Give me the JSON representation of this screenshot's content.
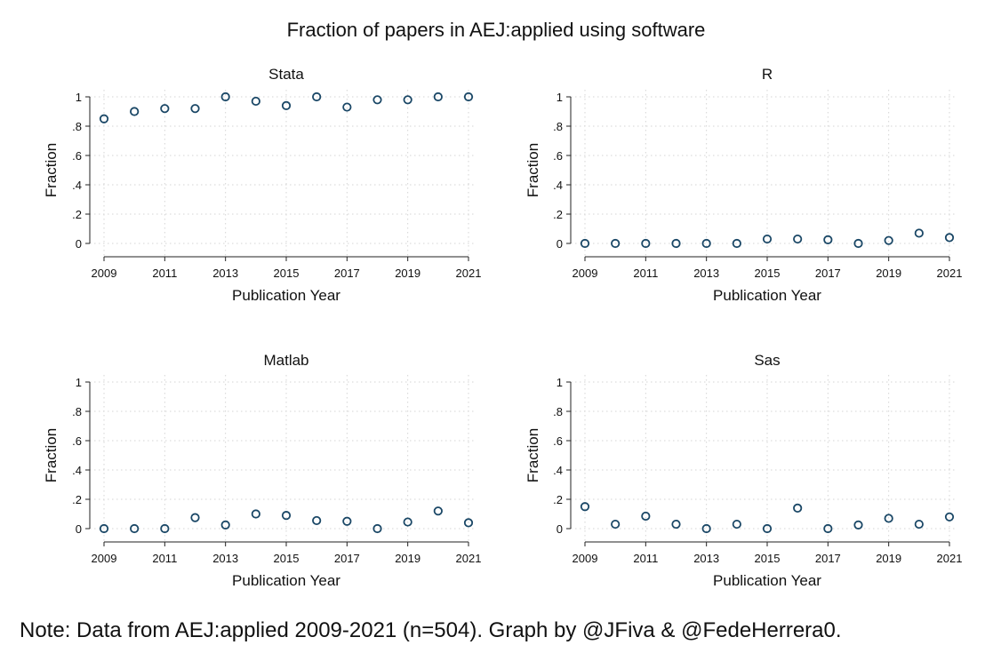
{
  "figure": {
    "title": "Fraction of papers in AEJ:applied using software",
    "note": "Note: Data from AEJ:applied 2009-2021 (n=504). Graph by @JFiva & @FedeHerrera0."
  },
  "chart_data": [
    {
      "type": "scatter",
      "title": "Stata",
      "xlabel": "Publication Year",
      "ylabel": "Fraction",
      "x": [
        2009,
        2010,
        2011,
        2012,
        2013,
        2014,
        2015,
        2016,
        2017,
        2018,
        2019,
        2020,
        2021
      ],
      "y": [
        0.85,
        0.9,
        0.92,
        0.92,
        1.0,
        0.97,
        0.94,
        1.0,
        0.93,
        0.98,
        0.98,
        1.0,
        1.0
      ],
      "xlim": [
        2009,
        2021
      ],
      "ylim": [
        0,
        1
      ],
      "xticks": [
        2009,
        2011,
        2013,
        2015,
        2017,
        2019,
        2021
      ],
      "yticks": [
        "0",
        ".2",
        ".4",
        ".6",
        ".8",
        "1"
      ],
      "grid": true
    },
    {
      "type": "scatter",
      "title": "R",
      "xlabel": "Publication Year",
      "ylabel": "Fraction",
      "x": [
        2009,
        2010,
        2011,
        2012,
        2013,
        2014,
        2015,
        2016,
        2017,
        2018,
        2019,
        2020,
        2021
      ],
      "y": [
        0.0,
        0.0,
        0.0,
        0.0,
        0.0,
        0.0,
        0.03,
        0.03,
        0.025,
        0.0,
        0.02,
        0.07,
        0.04
      ],
      "xlim": [
        2009,
        2021
      ],
      "ylim": [
        0,
        1
      ],
      "xticks": [
        2009,
        2011,
        2013,
        2015,
        2017,
        2019,
        2021
      ],
      "yticks": [
        "0",
        ".2",
        ".4",
        ".6",
        ".8",
        "1"
      ],
      "grid": true
    },
    {
      "type": "scatter",
      "title": "Matlab",
      "xlabel": "Publication Year",
      "ylabel": "Fraction",
      "x": [
        2009,
        2010,
        2011,
        2012,
        2013,
        2014,
        2015,
        2016,
        2017,
        2018,
        2019,
        2020,
        2021
      ],
      "y": [
        0.0,
        0.0,
        0.0,
        0.075,
        0.025,
        0.1,
        0.09,
        0.055,
        0.05,
        0.0,
        0.045,
        0.12,
        0.04
      ],
      "xlim": [
        2009,
        2021
      ],
      "ylim": [
        0,
        1
      ],
      "xticks": [
        2009,
        2011,
        2013,
        2015,
        2017,
        2019,
        2021
      ],
      "yticks": [
        "0",
        ".2",
        ".4",
        ".6",
        ".8",
        "1"
      ],
      "grid": true
    },
    {
      "type": "scatter",
      "title": "Sas",
      "xlabel": "Publication Year",
      "ylabel": "Fraction",
      "x": [
        2009,
        2010,
        2011,
        2012,
        2013,
        2014,
        2015,
        2016,
        2017,
        2018,
        2019,
        2020,
        2021
      ],
      "y": [
        0.15,
        0.03,
        0.085,
        0.03,
        0.0,
        0.03,
        0.0,
        0.14,
        0.0,
        0.025,
        0.07,
        0.03,
        0.08
      ],
      "xlim": [
        2009,
        2021
      ],
      "ylim": [
        0,
        1
      ],
      "xticks": [
        2009,
        2011,
        2013,
        2015,
        2017,
        2019,
        2021
      ],
      "yticks": [
        "0",
        ".2",
        ".4",
        ".6",
        ".8",
        "1"
      ],
      "grid": true
    }
  ],
  "colors": {
    "marker": "#1a4766",
    "grid": "#d4d4d4",
    "axis": "#222222"
  }
}
